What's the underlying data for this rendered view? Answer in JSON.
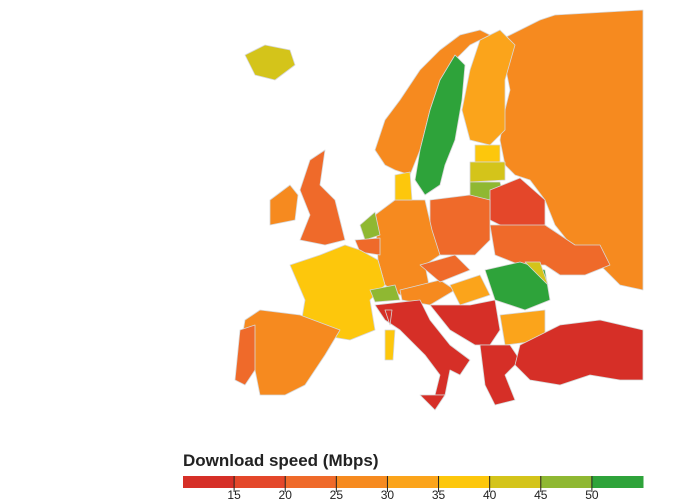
{
  "legend": {
    "title": "Download speed (Mbps)",
    "range": [
      10,
      55
    ],
    "ticks": [
      15,
      20,
      25,
      30,
      35,
      40,
      45,
      50
    ],
    "colors": [
      "#d62f27",
      "#e4472a",
      "#ef6a2a",
      "#f68a1f",
      "#fba41b",
      "#fdc70c",
      "#d4c41a",
      "#8fb832",
      "#2ea33a"
    ]
  }
}
